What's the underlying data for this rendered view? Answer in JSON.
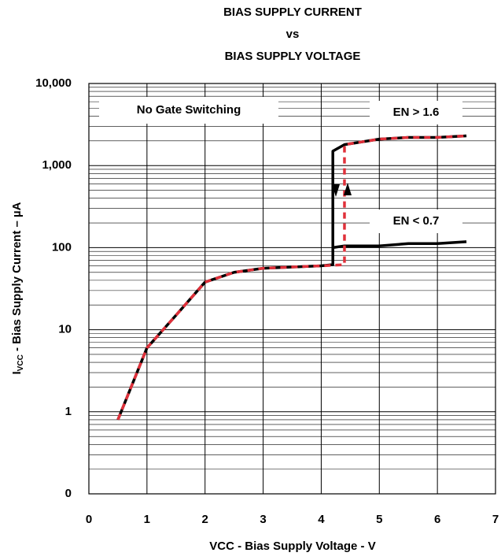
{
  "chart_data": {
    "type": "line",
    "title": [
      "BIAS SUPPLY CURRENT",
      "vs",
      "BIAS SUPPLY VOLTAGE"
    ],
    "xlabel": "VCC - Bias Supply Voltage - V",
    "ylabel": {
      "main": "I",
      "sub": "VCC",
      "rest": " - Bias Supply Current – µA"
    },
    "xlim": [
      0,
      7
    ],
    "xticks": [
      0,
      1,
      2,
      3,
      4,
      5,
      6,
      7
    ],
    "ylim": [
      0.1,
      10000
    ],
    "yticks": [
      {
        "value": 0.1,
        "label": "0"
      },
      1,
      10,
      100,
      {
        "value": 1000,
        "label": "1,000"
      },
      {
        "value": 10000,
        "label": "10,000"
      }
    ],
    "log_y": true,
    "grid": true,
    "series": [
      {
        "color": "#000000",
        "style": "solid",
        "x": [
          0.5,
          1,
          1.5,
          2,
          2.5,
          3,
          3.5,
          4,
          4.2,
          4.2,
          4.4,
          5,
          5.5,
          6,
          6.5,
          null,
          4.2,
          4.4,
          5,
          5.5,
          6,
          6.5
        ],
        "values": [
          0.8,
          6,
          15,
          38,
          50,
          56,
          58,
          60,
          62,
          1500,
          1800,
          2100,
          2200,
          2200,
          2300,
          null,
          100,
          105,
          105,
          112,
          112,
          118
        ]
      },
      {
        "color": "#e0303a",
        "style": "dashed",
        "x": [
          0.5,
          1,
          1.5,
          2,
          2.5,
          3,
          3.5,
          4,
          4.4,
          4.4,
          5,
          5.5,
          6,
          6.5
        ],
        "values": [
          0.8,
          6,
          15,
          38,
          50,
          56,
          58,
          60,
          62,
          1800,
          2100,
          2200,
          2200,
          2300
        ]
      }
    ],
    "annotations": [
      "No Gate Switching",
      "EN > 1.6",
      "EN < 0.7"
    ]
  }
}
